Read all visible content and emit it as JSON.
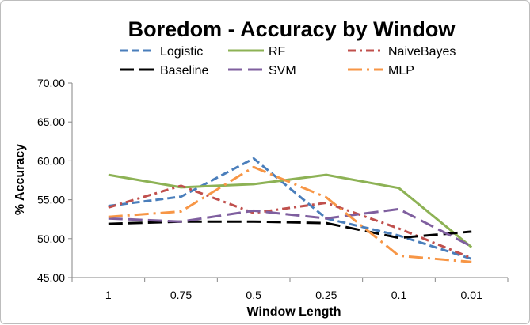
{
  "chart_data": {
    "type": "line",
    "title": "Boredom - Accuracy by Window",
    "xlabel": "Window Length",
    "ylabel": "% Accuracy",
    "categories": [
      "1",
      "0.75",
      "0.5",
      "0.25",
      "0.1",
      "0.01"
    ],
    "ylim": [
      45,
      70
    ],
    "yticks": [
      "45.00",
      "50.00",
      "55.00",
      "60.00",
      "65.00",
      "70.00"
    ],
    "grid": false,
    "legend_position": "top",
    "series": [
      {
        "name": "Logistic",
        "color": "#4a7ebb",
        "style": "dash",
        "values": [
          54.2,
          55.4,
          60.3,
          52.6,
          50.4,
          47.4
        ]
      },
      {
        "name": "RF",
        "color": "#8db255",
        "style": "solid",
        "values": [
          58.2,
          56.6,
          57.0,
          58.2,
          56.5,
          48.9
        ]
      },
      {
        "name": "NaiveBayes",
        "color": "#c0504d",
        "style": "dashdot",
        "values": [
          54.0,
          56.8,
          53.3,
          54.6,
          51.3,
          47.5
        ]
      },
      {
        "name": "Baseline",
        "color": "#000000",
        "style": "longdash",
        "values": [
          51.9,
          52.2,
          52.2,
          52.0,
          50.1,
          50.9
        ]
      },
      {
        "name": "SVM",
        "color": "#7f5f9f",
        "style": "longdash",
        "values": [
          52.6,
          52.2,
          53.6,
          52.6,
          53.8,
          49.0
        ]
      },
      {
        "name": "MLP",
        "color": "#f79646",
        "style": "longdashdot",
        "values": [
          52.8,
          53.5,
          59.2,
          55.3,
          47.8,
          47.0
        ]
      }
    ]
  }
}
